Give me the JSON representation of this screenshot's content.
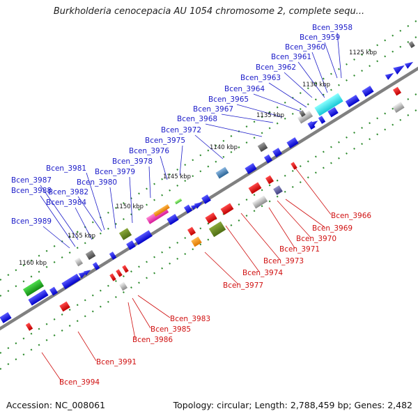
{
  "title": "Burkholderia cenocepacia AU 1054 chromosome 2, complete sequ...",
  "footer": {
    "accession": "Accession: NC_008061",
    "info": "Topology: circular; Length: 2,788,459 bp; Genes: 2,482"
  },
  "colors": {
    "forward_label": "#1a1ac8",
    "reverse_label": "#d01010",
    "backbone": "#808080",
    "tick": "#2e8b2e"
  },
  "kbp_ticks": [
    "1125 kbp",
    "1130 kbp",
    "1135 kbp",
    "1140 kbp",
    "1145 kbp",
    "1150 kbp",
    "1155 kbp",
    "1160 kbp"
  ],
  "forward_labels": [
    "Bcen_3958",
    "Bcen_3959",
    "Bcen_3960",
    "Bcen_3961",
    "Bcen_3962",
    "Bcen_3963",
    "Bcen_3964",
    "Bcen_3965",
    "Bcen_3967",
    "Bcen_3968",
    "Bcen_3972",
    "Bcen_3975",
    "Bcen_3976",
    "Bcen_3978",
    "Bcen_3979",
    "Bcen_3980",
    "Bcen_3981",
    "Bcen_3982",
    "Bcen_3984",
    "Bcen_3987",
    "Bcen_3988",
    "Bcen_3989"
  ],
  "reverse_labels": [
    "Bcen_3966",
    "Bcen_3969",
    "Bcen_3970",
    "Bcen_3971",
    "Bcen_3973",
    "Bcen_3974",
    "Bcen_3977",
    "Bcen_3983",
    "Bcen_3985",
    "Bcen_3986",
    "Bcen_3991",
    "Bcen_3994"
  ]
}
